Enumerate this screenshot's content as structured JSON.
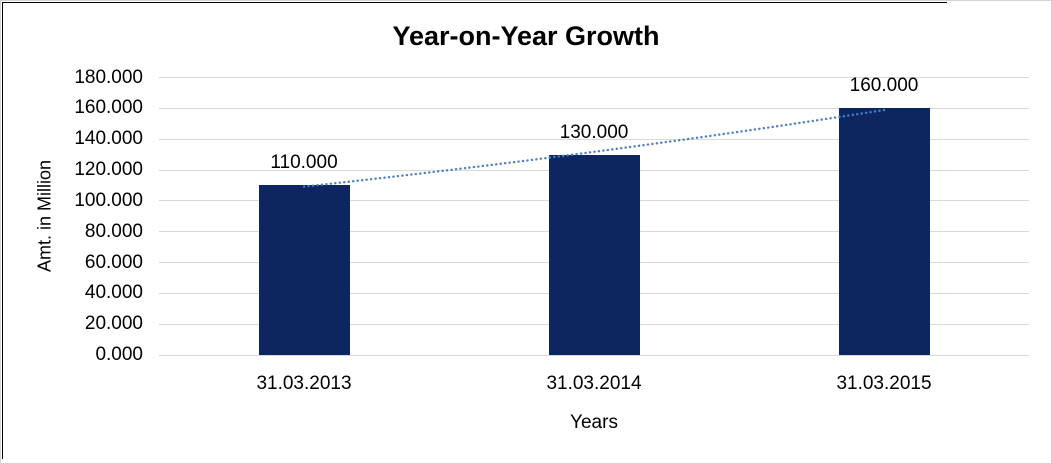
{
  "chart_data": {
    "type": "bar",
    "title": "Year-on-Year Growth",
    "xlabel": "Years",
    "ylabel": "Amt. in Million",
    "categories": [
      "31.03.2013",
      "31.03.2014",
      "31.03.2015"
    ],
    "values": [
      110,
      130,
      160
    ],
    "value_labels": [
      "110.000",
      "130.000",
      "160.000"
    ],
    "ylim": [
      0,
      180
    ],
    "ytick_step": 20,
    "ytick_labels": [
      "0.000",
      "20.000",
      "40.000",
      "60.000",
      "80.000",
      "100.000",
      "120.000",
      "140.000",
      "160.000",
      "180.000"
    ],
    "grid": "horizontal",
    "legend": "none",
    "bar_color": "#0d265f",
    "gridline_color": "#d9d9d9",
    "frame_border_color": "#d3d3d3",
    "chart_border_color": "#000000",
    "trendline": {
      "style": "dotted",
      "shape": "exponential",
      "color": "#4a7ec2",
      "fitted_values": [
        109.2,
        131.8,
        158.9
      ]
    }
  }
}
